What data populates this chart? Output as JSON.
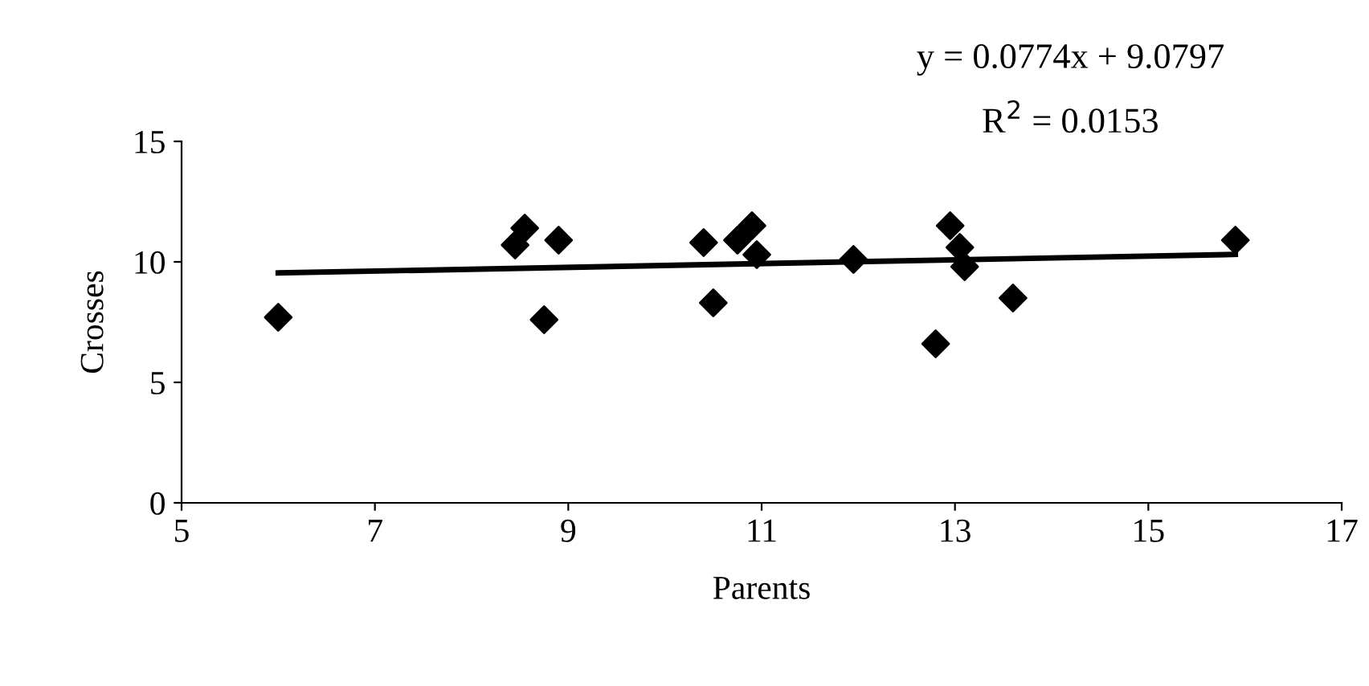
{
  "chart_data": {
    "type": "scatter",
    "xlabel": "Parents",
    "ylabel": "Crosses",
    "xlim": [
      5,
      17
    ],
    "xticks": [
      5,
      7,
      9,
      11,
      13,
      15,
      17
    ],
    "ylim": [
      0,
      15
    ],
    "yticks": [
      0,
      5,
      10,
      15
    ],
    "grid": false,
    "legend": false,
    "annotations": [
      "y = 0.0774x + 9.0797",
      "R$^{2}$ = 0.0153"
    ],
    "series": [
      {
        "color": "#000000",
        "marker": "diamond",
        "x": [
          6.0,
          8.45,
          8.55,
          8.75,
          8.9,
          10.4,
          10.5,
          10.75,
          10.9,
          10.95,
          11.95,
          12.8,
          12.95,
          13.05,
          13.1,
          13.6,
          15.9
        ],
        "values": [
          7.7,
          10.7,
          11.4,
          7.6,
          10.9,
          10.8,
          8.3,
          10.9,
          11.5,
          10.3,
          10.1,
          6.6,
          11.5,
          10.6,
          9.8,
          8.5,
          10.9
        ]
      },
      {
        "type": "line",
        "color": "#000000",
        "x": [
          6.0,
          15.9
        ],
        "values": [
          9.54,
          10.31
        ]
      }
    ]
  }
}
